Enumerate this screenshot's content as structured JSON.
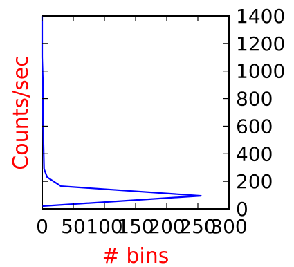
{
  "chart_data": {
    "type": "line",
    "title": "",
    "xlabel": "# bins",
    "ylabel": "Counts/sec",
    "xlim": [
      0,
      300
    ],
    "ylim": [
      0,
      1400
    ],
    "xticks": [
      "0",
      "50",
      "100",
      "150",
      "200",
      "250",
      "300"
    ],
    "yticks": [
      "0",
      "200",
      "400",
      "600",
      "800",
      "1000",
      "1200",
      "1400"
    ],
    "y_axis_side": "right",
    "grid": false,
    "legend": "none",
    "label_color": "#ff0000",
    "series": [
      {
        "color": "#0000ff",
        "points": [
          {
            "x": 0,
            "y": 20
          },
          {
            "x": 255,
            "y": 95
          },
          {
            "x": 30,
            "y": 165
          },
          {
            "x": 8,
            "y": 230
          },
          {
            "x": 3,
            "y": 290
          },
          {
            "x": 2,
            "y": 500
          },
          {
            "x": 1,
            "y": 750
          },
          {
            "x": 1,
            "y": 950
          },
          {
            "x": 0,
            "y": 1100
          },
          {
            "x": 0,
            "y": 1400
          }
        ]
      }
    ]
  }
}
